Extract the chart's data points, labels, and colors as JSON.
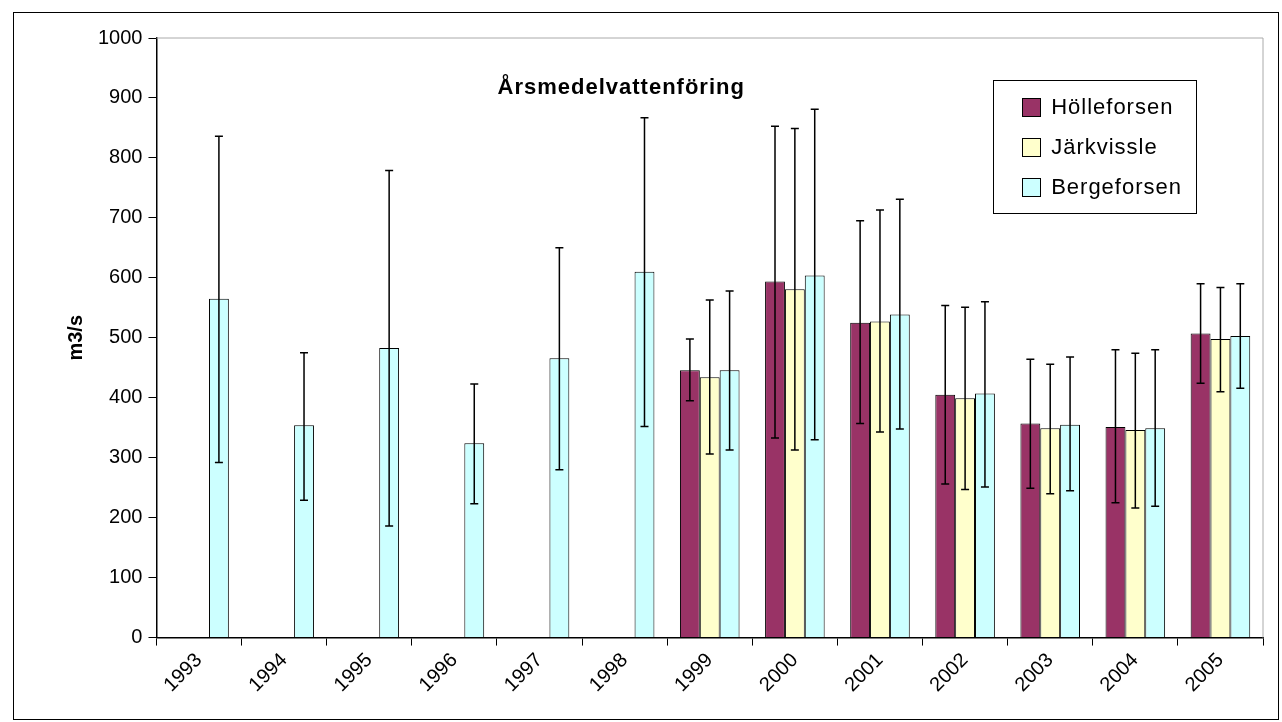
{
  "chart_data": {
    "type": "bar",
    "title": "Årsmedelvattenföring",
    "ylabel": "m3/s",
    "categories": [
      "1993",
      "1994",
      "1995",
      "1996",
      "1997",
      "1998",
      "1999",
      "2000",
      "2001",
      "2002",
      "2003",
      "2004",
      "2005"
    ],
    "series": [
      {
        "name": "Hölleforsen",
        "color": "#993366",
        "values": [
          null,
          null,
          null,
          null,
          null,
          null,
          446,
          594,
          525,
          405,
          357,
          351,
          507
        ],
        "errors": [
          null,
          null,
          null,
          null,
          null,
          null,
          [
            395,
            498
          ],
          [
            333,
            853
          ],
          [
            357,
            695
          ],
          [
            256,
            554
          ],
          [
            249,
            464
          ],
          [
            225,
            480
          ],
          [
            424,
            590
          ]
        ]
      },
      {
        "name": "Järkvissle",
        "color": "#ffffcc",
        "values": [
          null,
          null,
          null,
          null,
          null,
          null,
          434,
          581,
          527,
          399,
          349,
          346,
          498
        ],
        "errors": [
          null,
          null,
          null,
          null,
          null,
          null,
          [
            306,
            563
          ],
          [
            313,
            849
          ],
          [
            343,
            713
          ],
          [
            247,
            551
          ],
          [
            240,
            456
          ],
          [
            216,
            474
          ],
          [
            410,
            584
          ]
        ]
      },
      {
        "name": "Bergeforsen",
        "color": "#ccffff",
        "values": [
          565,
          354,
          483,
          324,
          466,
          610,
          446,
          604,
          539,
          407,
          355,
          349,
          503
        ],
        "errors": [
          [
            292,
            836
          ],
          [
            229,
            475
          ],
          [
            186,
            779
          ],
          [
            223,
            423
          ],
          [
            280,
            650
          ],
          [
            352,
            867
          ],
          [
            313,
            578
          ],
          [
            330,
            881
          ],
          [
            348,
            731
          ],
          [
            251,
            560
          ],
          [
            245,
            468
          ],
          [
            219,
            480
          ],
          [
            416,
            590
          ]
        ]
      }
    ],
    "ylim": [
      0,
      1000
    ],
    "yticks": [
      0,
      100,
      200,
      300,
      400,
      500,
      600,
      700,
      800,
      900,
      1000
    ],
    "grid": false,
    "legend": "top right"
  }
}
